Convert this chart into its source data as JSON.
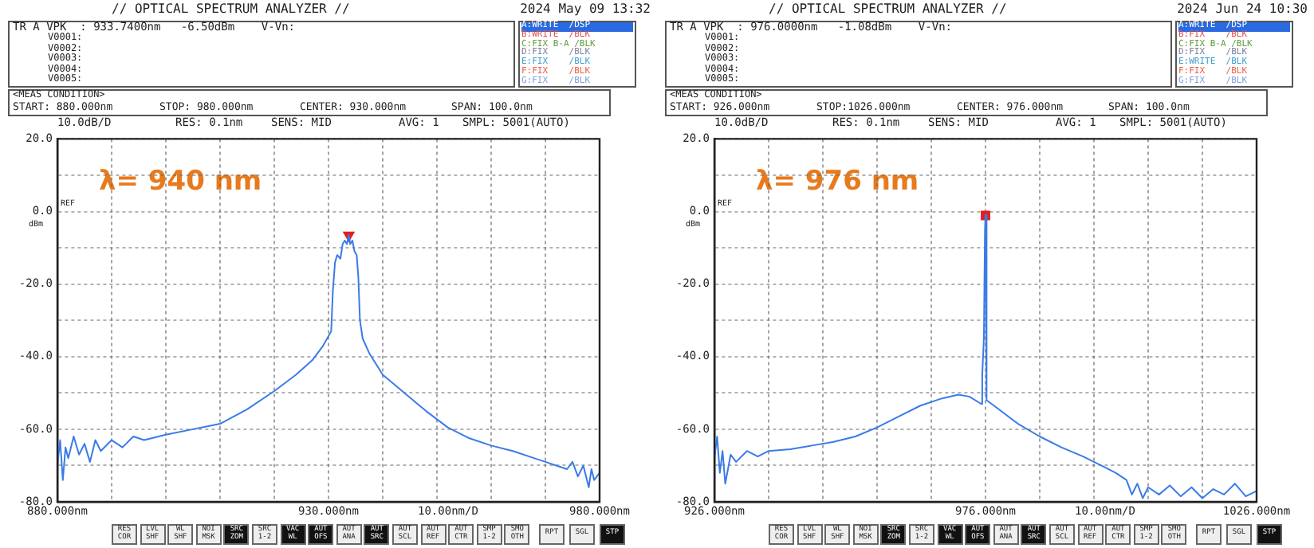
{
  "chart_data": [
    {
      "type": "line",
      "title": "// OPTICAL SPECTRUM ANALYZER //",
      "grid": true,
      "xlabel": "10.00nm/D",
      "annotations": [
        "2024 May 09 13:32",
        "TR A VPK  : 933.7400nm   -6.50dBm    V-Vn:",
        "V0001:",
        "V0002:",
        "V0003:",
        "V0004:",
        "V0005:",
        "A:WRITE  /DSP",
        "B:WRITE  /BLK",
        "C:FIX B-A /BLK",
        "D:FIX    /BLK",
        "E:FIX    /BLK",
        "F:FIX    /BLK",
        "G:FIX    /BLK",
        "<MEAS CONDITION>",
        "START: 880.000nm",
        "STOP: 980.000nm",
        "CENTER: 930.000nm",
        "SPAN: 100.0nm",
        "10.0dB/D",
        "RES: 0.1nm",
        "SENS: MID",
        "AVG: 1",
        "SMPL: 5001(AUTO)",
        "REF",
        "dBm",
        "λ= 940 nm",
        "RES COR",
        "LVL SHF",
        "WL SHF",
        "NOI MSK",
        "SRC ZOM",
        "SRC 1-2",
        "VAC WL",
        "AUT OFS",
        "AUT ANA",
        "AUT SRC",
        "AUT SCL",
        "AUT REF",
        "AUT CTR",
        "SMP 1-2",
        "SMO OTH",
        "RPT",
        "SGL",
        "STP"
      ],
      "xlim": [
        880,
        980
      ],
      "xticks": [
        {
          "value": 880,
          "label": "880.000nm"
        },
        {
          "value": 890,
          "label": null
        },
        {
          "value": 900,
          "label": null
        },
        {
          "value": 910,
          "label": null
        },
        {
          "value": 920,
          "label": null
        },
        {
          "value": 930,
          "label": "930.000nm"
        },
        {
          "value": 940,
          "label": null
        },
        {
          "value": 950,
          "label": null
        },
        {
          "value": 960,
          "label": null
        },
        {
          "value": 970,
          "label": null
        },
        {
          "value": 980,
          "label": "980.000nm"
        }
      ],
      "ylim": [
        -80,
        20
      ],
      "yticks": [
        {
          "value": -80,
          "label": "-80.0"
        },
        {
          "value": -70,
          "label": null
        },
        {
          "value": -60,
          "label": "-60.0"
        },
        {
          "value": -50,
          "label": null
        },
        {
          "value": -40,
          "label": "-40.0"
        },
        {
          "value": -30,
          "label": null
        },
        {
          "value": -20,
          "label": "-20.0"
        },
        {
          "value": -10,
          "label": null
        },
        {
          "value": 0,
          "label": "0.0"
        },
        {
          "value": 10,
          "label": null
        },
        {
          "value": 20,
          "label": "20.0"
        }
      ],
      "series": [
        {
          "type": "line",
          "color": "#3a7be8",
          "marker": "none",
          "x": [
            880,
            880.5,
            881,
            881.5,
            882,
            883,
            884,
            885,
            886,
            887,
            888,
            890,
            892,
            894,
            896,
            900,
            905,
            910,
            915,
            920,
            924,
            927,
            929,
            930.5,
            930.8,
            931.2,
            931.6,
            932.2,
            932.6,
            933,
            933.4,
            933.74,
            934,
            934.4,
            934.8,
            935.2,
            935.5,
            935.8,
            936.3,
            937.5,
            940,
            944,
            948,
            952,
            956,
            960,
            964,
            968,
            970,
            972,
            974,
            975,
            976,
            977,
            978,
            978.5,
            979,
            980
          ],
          "values": [
            -70,
            -63,
            -74,
            -65,
            -68,
            -62,
            -67,
            -64,
            -69,
            -63,
            -66,
            -63,
            -65,
            -62,
            -63,
            -61.5,
            -60,
            -58.5,
            -54.5,
            -49.5,
            -45,
            -41,
            -37,
            -33,
            -22,
            -14,
            -12,
            -13,
            -9,
            -8,
            -9,
            -6.5,
            -9,
            -8,
            -11,
            -12,
            -18,
            -30,
            -35,
            -39,
            -45,
            -50,
            -55,
            -59.5,
            -62.5,
            -64.5,
            -66,
            -68,
            -69,
            -70,
            -71,
            -69,
            -73,
            -70,
            -76,
            -71,
            -74,
            -72
          ]
        },
        {
          "type": "scatter",
          "color": "#e02020",
          "marker": "triangle",
          "x": [
            933.74
          ],
          "values": [
            -6.5
          ]
        }
      ]
    },
    {
      "type": "line",
      "title": "// OPTICAL SPECTRUM ANALYZER //",
      "grid": true,
      "xlabel": "10.00nm/D",
      "annotations": [
        "2024 Jun 24 10:30",
        "TR A VPK  : 976.0000nm   -1.08dBm    V-Vn:",
        "V0001:",
        "V0002:",
        "V0003:",
        "V0004:",
        "V0005:",
        "A:WRITE  /DSP",
        "B:FIX    /BLK",
        "C:FIX B-A /BLK",
        "D:FIX    /BLK",
        "E:WRITE  /BLK",
        "F:FIX    /BLK",
        "G:FIX    /BLK",
        "<MEAS CONDITION>",
        "START: 926.000nm",
        "STOP:1026.000nm",
        "CENTER: 976.000nm",
        "SPAN: 100.0nm",
        "10.0dB/D",
        "RES: 0.1nm",
        "SENS: MID",
        "AVG: 1",
        "SMPL: 5001(AUTO)",
        "REF",
        "dBm",
        "λ= 976 nm",
        "RES COR",
        "LVL SHF",
        "WL SHF",
        "NOI MSK",
        "SRC ZOM",
        "SRC 1-2",
        "VAC WL",
        "AUT OFS",
        "AUT ANA",
        "AUT SRC",
        "AUT SCL",
        "AUT REF",
        "AUT CTR",
        "SMP 1-2",
        "SMO OTH",
        "RPT",
        "SGL",
        "STP"
      ],
      "xlim": [
        926,
        1026
      ],
      "xticks": [
        {
          "value": 926,
          "label": "926.000nm"
        },
        {
          "value": 936,
          "label": null
        },
        {
          "value": 946,
          "label": null
        },
        {
          "value": 956,
          "label": null
        },
        {
          "value": 966,
          "label": null
        },
        {
          "value": 976,
          "label": "976.000nm"
        },
        {
          "value": 986,
          "label": null
        },
        {
          "value": 996,
          "label": null
        },
        {
          "value": 1006,
          "label": null
        },
        {
          "value": 1016,
          "label": null
        },
        {
          "value": 1026,
          "label": "1026.000nm"
        }
      ],
      "ylim": [
        -80,
        20
      ],
      "yticks": [
        {
          "value": -80,
          "label": "-80.0"
        },
        {
          "value": -70,
          "label": null
        },
        {
          "value": -60,
          "label": "-60.0"
        },
        {
          "value": -50,
          "label": null
        },
        {
          "value": -40,
          "label": "-40.0"
        },
        {
          "value": -30,
          "label": null
        },
        {
          "value": -20,
          "label": "-20.0"
        },
        {
          "value": -10,
          "label": null
        },
        {
          "value": 0,
          "label": "0.0"
        },
        {
          "value": 10,
          "label": null
        },
        {
          "value": 20,
          "label": "20.0"
        }
      ],
      "series": [
        {
          "type": "line",
          "color": "#3a7be8",
          "marker": "none",
          "x": [
            926,
            926.5,
            927,
            927.5,
            928,
            929,
            930,
            932,
            934,
            936,
            940,
            944,
            948,
            952,
            956,
            960,
            964,
            968,
            971,
            973,
            975.2,
            975.4,
            975.7,
            975.9,
            976,
            976.2,
            978,
            982,
            986,
            990,
            994,
            998,
            1000,
            1002,
            1003,
            1004,
            1005,
            1006,
            1008,
            1010,
            1012,
            1014,
            1016,
            1018,
            1020,
            1022,
            1024,
            1026
          ],
          "values": [
            -68,
            -62,
            -72,
            -66,
            -75,
            -67,
            -69,
            -66,
            -67.5,
            -66,
            -65.5,
            -64.5,
            -63.5,
            -62,
            -59.5,
            -56.5,
            -53.5,
            -51.5,
            -50.5,
            -51,
            -53,
            -45,
            -35,
            -5,
            -1,
            -52,
            -54,
            -58.5,
            -62,
            -65,
            -67.5,
            -70.5,
            -72,
            -74,
            -78,
            -75,
            -79,
            -76,
            -78,
            -75.5,
            -78.5,
            -76,
            -79,
            -76.5,
            -78,
            -75,
            -78.5,
            -77
          ]
        },
        {
          "type": "scatter",
          "color": "#e02020",
          "marker": "square",
          "x": [
            976
          ],
          "values": [
            -1.08
          ]
        }
      ]
    }
  ]
}
